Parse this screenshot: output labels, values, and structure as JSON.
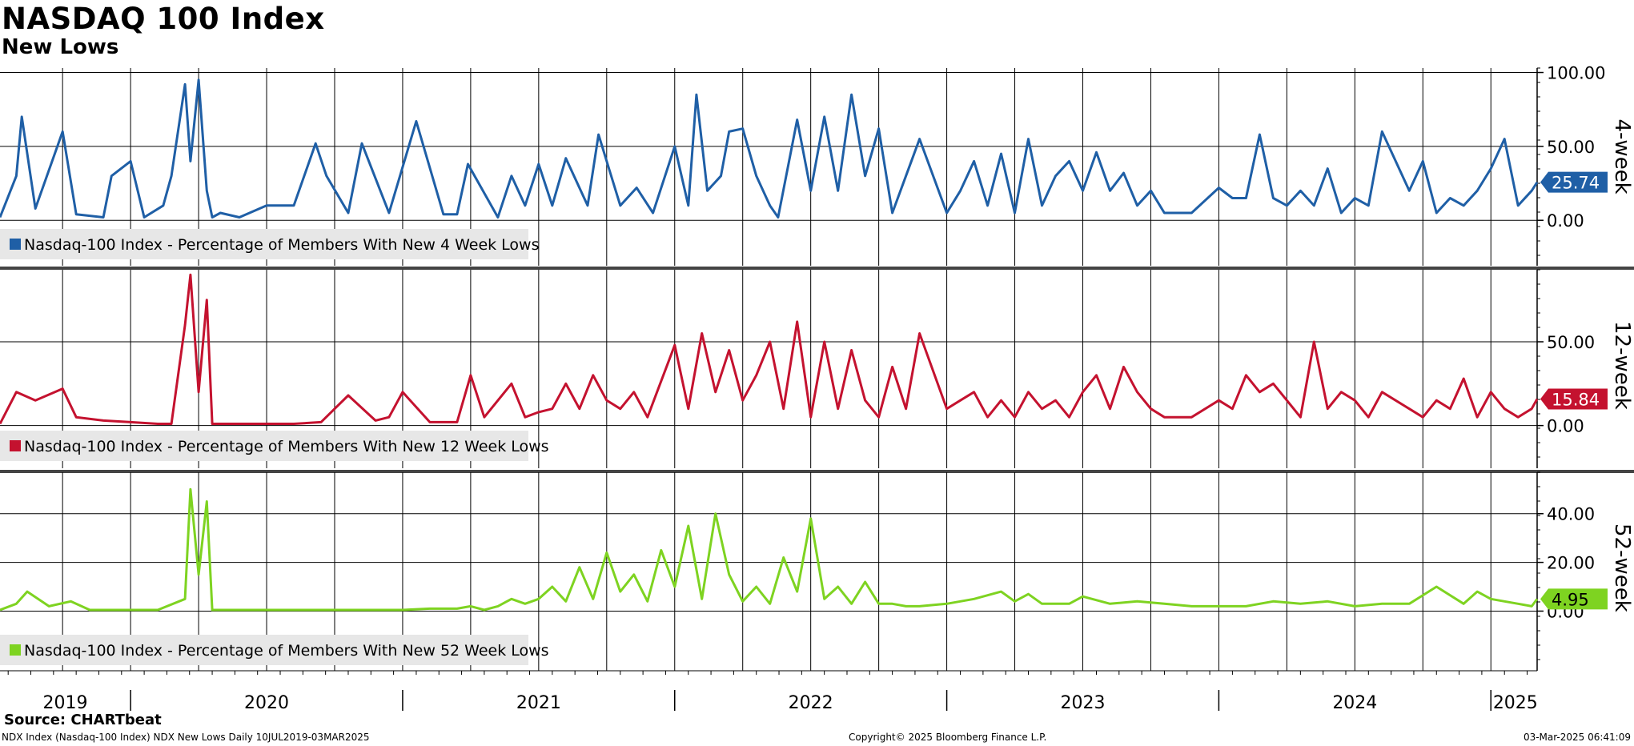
{
  "header": {
    "title": "NASDAQ 100 Index",
    "subtitle": "New Lows"
  },
  "footer": {
    "source": "Source: CHARTbeat",
    "security_line": "NDX Index (Nasdaq-100 Index) NDX New Lows  Daily 10JUL2019-03MAR2025",
    "copyright": "Copyright© 2025 Bloomberg Finance L.P.",
    "timestamp": "03-Mar-2025 06:41:09"
  },
  "x_axis": {
    "start": 2019.52,
    "end": 2025.17,
    "year_labels": [
      {
        "label": "2019",
        "x": 2019.76
      },
      {
        "label": "2020",
        "x": 2020.5
      },
      {
        "label": "2021",
        "x": 2021.5
      },
      {
        "label": "2022",
        "x": 2022.5
      },
      {
        "label": "2023",
        "x": 2023.5
      },
      {
        "label": "2024",
        "x": 2024.5
      },
      {
        "label": "2025",
        "x": 2025.09
      }
    ]
  },
  "chart_data": [
    {
      "type": "line",
      "panel": "4-week",
      "panel_label": "4-week",
      "color": "#1f5fa6",
      "ylim": [
        -8,
        103
      ],
      "yticks": [
        "0.00",
        "50.00",
        "100.00"
      ],
      "ytick_values": [
        0,
        50,
        100
      ],
      "last_value": 25.74,
      "last_value_label": "25.74",
      "legend": "Nasdaq-100 Index - Percentage of Members With New 4 Week Lows",
      "x": [
        2019.52,
        2019.58,
        2019.6,
        2019.65,
        2019.75,
        2019.8,
        2019.9,
        2019.93,
        2020.0,
        2020.05,
        2020.12,
        2020.15,
        2020.2,
        2020.22,
        2020.25,
        2020.28,
        2020.3,
        2020.33,
        2020.4,
        2020.5,
        2020.6,
        2020.68,
        2020.72,
        2020.8,
        2020.85,
        2020.95,
        2021.05,
        2021.15,
        2021.2,
        2021.24,
        2021.35,
        2021.4,
        2021.45,
        2021.5,
        2021.55,
        2021.6,
        2021.68,
        2021.72,
        2021.8,
        2021.86,
        2021.92,
        2022.0,
        2022.05,
        2022.08,
        2022.12,
        2022.17,
        2022.2,
        2022.25,
        2022.3,
        2022.35,
        2022.38,
        2022.45,
        2022.5,
        2022.55,
        2022.6,
        2022.65,
        2022.7,
        2022.75,
        2022.8,
        2022.85,
        2022.9,
        2023.0,
        2023.05,
        2023.1,
        2023.15,
        2023.2,
        2023.25,
        2023.3,
        2023.35,
        2023.4,
        2023.45,
        2023.5,
        2023.55,
        2023.6,
        2023.65,
        2023.7,
        2023.75,
        2023.8,
        2023.9,
        2024.0,
        2024.05,
        2024.1,
        2024.15,
        2024.2,
        2024.25,
        2024.3,
        2024.35,
        2024.4,
        2024.45,
        2024.5,
        2024.55,
        2024.6,
        2024.7,
        2024.75,
        2024.8,
        2024.85,
        2024.9,
        2024.95,
        2025.0,
        2025.05,
        2025.1,
        2025.15,
        2025.17
      ],
      "y": [
        2,
        30,
        70,
        8,
        60,
        4,
        2,
        30,
        40,
        2,
        10,
        30,
        92,
        40,
        95,
        20,
        2,
        5,
        2,
        10,
        10,
        52,
        30,
        5,
        52,
        5,
        67,
        4,
        4,
        38,
        2,
        30,
        10,
        38,
        10,
        42,
        10,
        58,
        10,
        22,
        5,
        50,
        10,
        85,
        20,
        30,
        60,
        62,
        30,
        10,
        2,
        68,
        20,
        70,
        20,
        85,
        30,
        62,
        5,
        30,
        55,
        5,
        20,
        40,
        10,
        45,
        5,
        55,
        10,
        30,
        40,
        20,
        46,
        20,
        32,
        10,
        20,
        5,
        5,
        22,
        15,
        15,
        58,
        15,
        10,
        20,
        10,
        35,
        5,
        15,
        10,
        60,
        20,
        40,
        5,
        15,
        10,
        20,
        35,
        55,
        10,
        20,
        25.74
      ]
    },
    {
      "type": "line",
      "panel": "12-week",
      "panel_label": "12-week",
      "color": "#c4122f",
      "ylim": [
        -4,
        93
      ],
      "yticks": [
        "0.00",
        "50.00"
      ],
      "ytick_values": [
        0,
        50
      ],
      "last_value": 15.84,
      "last_value_label": "15.84",
      "legend": "Nasdaq-100 Index - Percentage of Members With New 12 Week Lows",
      "x": [
        2019.52,
        2019.58,
        2019.65,
        2019.75,
        2019.8,
        2019.9,
        2020.0,
        2020.1,
        2020.15,
        2020.2,
        2020.22,
        2020.25,
        2020.28,
        2020.3,
        2020.4,
        2020.5,
        2020.6,
        2020.7,
        2020.8,
        2020.9,
        2020.95,
        2021.0,
        2021.1,
        2021.2,
        2021.25,
        2021.3,
        2021.4,
        2021.45,
        2021.5,
        2021.55,
        2021.6,
        2021.65,
        2021.7,
        2021.75,
        2021.8,
        2021.85,
        2021.9,
        2022.0,
        2022.05,
        2022.1,
        2022.15,
        2022.2,
        2022.25,
        2022.3,
        2022.35,
        2022.4,
        2022.45,
        2022.5,
        2022.55,
        2022.6,
        2022.65,
        2022.7,
        2022.75,
        2022.8,
        2022.85,
        2022.9,
        2023.0,
        2023.05,
        2023.1,
        2023.15,
        2023.2,
        2023.25,
        2023.3,
        2023.35,
        2023.4,
        2023.45,
        2023.5,
        2023.55,
        2023.6,
        2023.65,
        2023.7,
        2023.75,
        2023.8,
        2023.9,
        2024.0,
        2024.05,
        2024.1,
        2024.15,
        2024.2,
        2024.25,
        2024.3,
        2024.35,
        2024.4,
        2024.45,
        2024.5,
        2024.55,
        2024.6,
        2024.7,
        2024.75,
        2024.8,
        2024.85,
        2024.9,
        2024.95,
        2025.0,
        2025.05,
        2025.1,
        2025.15,
        2025.17
      ],
      "y": [
        1,
        20,
        15,
        22,
        5,
        3,
        2,
        1,
        1,
        60,
        90,
        20,
        75,
        1,
        1,
        1,
        1,
        2,
        18,
        3,
        5,
        20,
        2,
        2,
        30,
        5,
        25,
        5,
        8,
        10,
        25,
        10,
        30,
        15,
        10,
        20,
        5,
        48,
        10,
        55,
        20,
        45,
        15,
        30,
        50,
        10,
        62,
        5,
        50,
        10,
        45,
        15,
        5,
        35,
        10,
        55,
        10,
        15,
        20,
        5,
        15,
        5,
        20,
        10,
        15,
        5,
        20,
        30,
        10,
        35,
        20,
        10,
        5,
        5,
        15,
        10,
        30,
        20,
        25,
        15,
        5,
        50,
        10,
        20,
        15,
        5,
        20,
        10,
        5,
        15,
        10,
        28,
        5,
        20,
        10,
        5,
        10,
        15.84
      ]
    },
    {
      "type": "line",
      "panel": "52-week",
      "panel_label": "52-week",
      "color": "#7ed321",
      "ylim": [
        -12,
        57
      ],
      "yticks": [
        "0.00",
        "20.00",
        "40.00"
      ],
      "ytick_values": [
        0,
        20,
        40
      ],
      "last_value": 4.95,
      "last_value_label": "4.95",
      "legend": "Nasdaq-100 Index - Percentage of Members With New 52 Week Lows",
      "x": [
        2019.52,
        2019.58,
        2019.62,
        2019.7,
        2019.78,
        2019.85,
        2019.95,
        2020.0,
        2020.1,
        2020.2,
        2020.22,
        2020.25,
        2020.28,
        2020.3,
        2020.4,
        2020.6,
        2020.8,
        2021.0,
        2021.1,
        2021.2,
        2021.25,
        2021.3,
        2021.35,
        2021.4,
        2021.45,
        2021.5,
        2021.55,
        2021.6,
        2021.65,
        2021.7,
        2021.75,
        2021.8,
        2021.85,
        2021.9,
        2021.95,
        2022.0,
        2022.05,
        2022.1,
        2022.15,
        2022.2,
        2022.25,
        2022.3,
        2022.35,
        2022.4,
        2022.45,
        2022.5,
        2022.55,
        2022.6,
        2022.65,
        2022.7,
        2022.75,
        2022.8,
        2022.85,
        2022.9,
        2023.0,
        2023.1,
        2023.2,
        2023.25,
        2023.3,
        2023.35,
        2023.4,
        2023.45,
        2023.5,
        2023.6,
        2023.7,
        2023.8,
        2023.9,
        2024.0,
        2024.1,
        2024.2,
        2024.3,
        2024.4,
        2024.5,
        2024.6,
        2024.7,
        2024.8,
        2024.9,
        2024.95,
        2025.0,
        2025.05,
        2025.1,
        2025.15,
        2025.17
      ],
      "y": [
        0.5,
        3,
        8,
        2,
        4,
        0.5,
        0.5,
        0.5,
        0.5,
        5,
        50,
        15,
        45,
        0.5,
        0.5,
        0.5,
        0.5,
        0.5,
        1,
        1,
        2,
        0.5,
        2,
        5,
        3,
        5,
        10,
        4,
        18,
        5,
        24,
        8,
        15,
        4,
        25,
        10,
        35,
        5,
        40,
        15,
        4,
        10,
        3,
        22,
        8,
        38,
        5,
        10,
        3,
        12,
        3,
        3,
        2,
        2,
        3,
        5,
        8,
        4,
        7,
        3,
        3,
        3,
        6,
        3,
        4,
        3,
        2,
        2,
        2,
        4,
        3,
        4,
        2,
        3,
        3,
        10,
        3,
        8,
        5,
        4,
        3,
        2,
        4.95
      ]
    }
  ]
}
